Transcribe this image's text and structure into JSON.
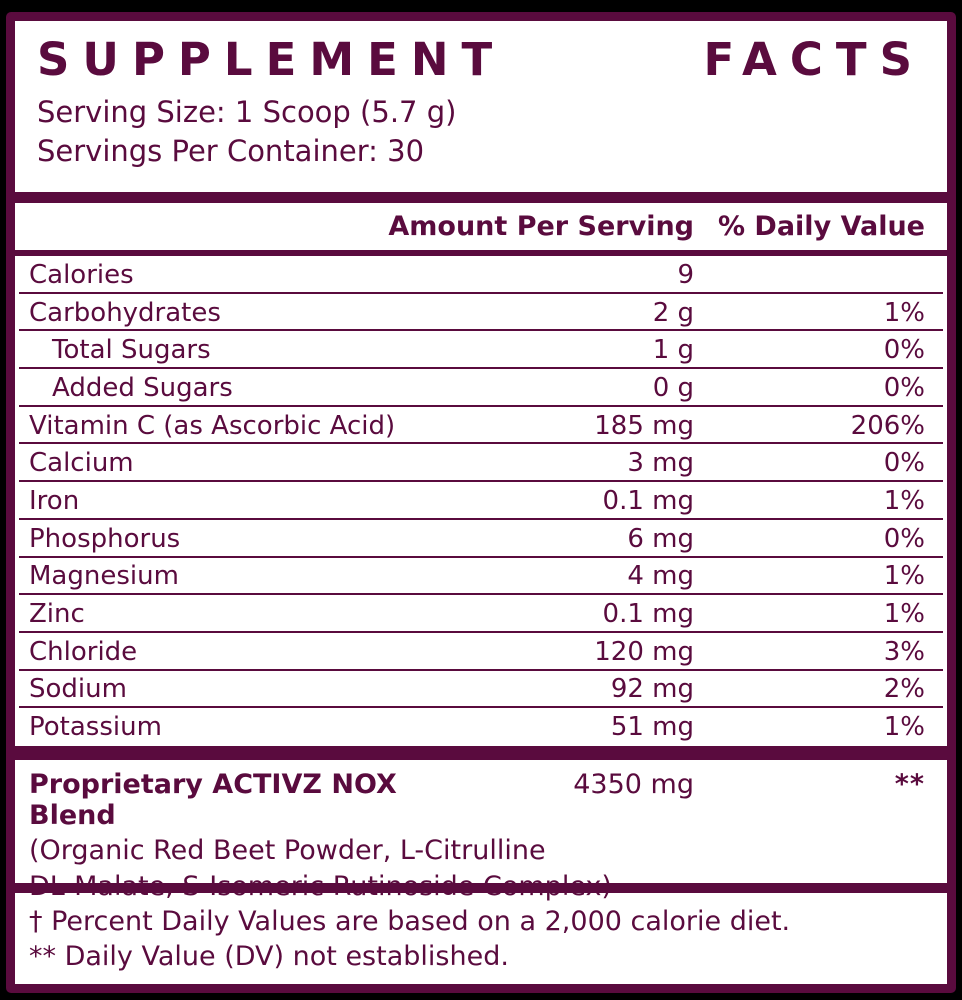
{
  "title": {
    "word1": "SUPPLEMENT",
    "word2": "FACTS"
  },
  "serving": {
    "size": "Serving Size: 1 Scoop (5.7 g)",
    "per_container": "Servings Per Container: 30"
  },
  "table": {
    "headers": {
      "amount": "Amount Per Serving",
      "dv": "% Daily Value"
    },
    "rows": [
      {
        "name": "Calories",
        "amount": "9",
        "dv": ""
      },
      {
        "name": "Carbohydrates",
        "amount": "2 g",
        "dv": "1%"
      },
      {
        "name": "Total Sugars",
        "amount": "1 g",
        "dv": "0%"
      },
      {
        "name": "Added Sugars",
        "amount": "0 g",
        "dv": "0%"
      },
      {
        "name": "Vitamin C (as Ascorbic Acid)",
        "amount": "185 mg",
        "dv": "206%"
      },
      {
        "name": "Calcium",
        "amount": "3 mg",
        "dv": "0%"
      },
      {
        "name": "Iron",
        "amount": "0.1 mg",
        "dv": "1%"
      },
      {
        "name": "Phosphorus",
        "amount": "6 mg",
        "dv": "0%"
      },
      {
        "name": "Magnesium",
        "amount": "4 mg",
        "dv": "1%"
      },
      {
        "name": "Zinc",
        "amount": "0.1 mg",
        "dv": "1%"
      },
      {
        "name": "Chloride",
        "amount": "120 mg",
        "dv": "3%"
      },
      {
        "name": "Sodium",
        "amount": "92 mg",
        "dv": "2%"
      },
      {
        "name": "Potassium",
        "amount": "51 mg",
        "dv": "1%"
      }
    ]
  },
  "blend": {
    "name": "Proprietary ACTIVZ NOX Blend",
    "amount": "4350 mg",
    "dv": "**",
    "description_line1": "(Organic Red Beet Powder, L-Citrulline",
    "description_line2": "DL-Malate, S-Isomeric Rutinoside Complex)"
  },
  "footnotes": {
    "line1": "† Percent Daily Values are based on a 2,000 calorie diet.",
    "line2": "** Daily Value (DV) not established."
  },
  "colors": {
    "accent": "#5a0b3e",
    "panel": "#ffffff",
    "background": "#000000"
  }
}
